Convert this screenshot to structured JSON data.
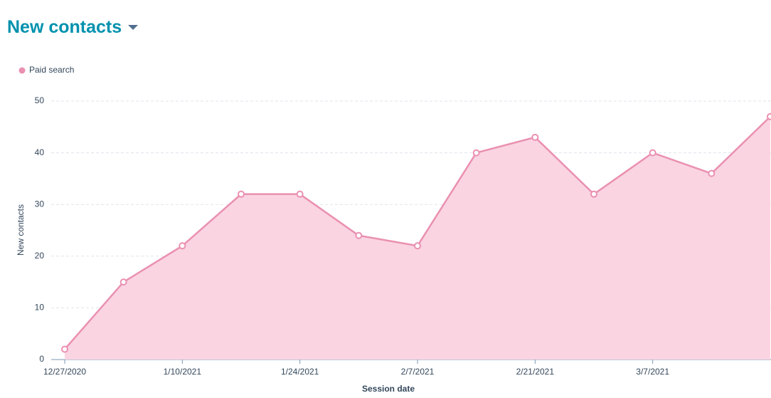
{
  "chart_data": {
    "type": "area",
    "title": "New contacts",
    "x_label": "Session date",
    "y_label": "New contacts",
    "categories": [
      "12/27/2020",
      null,
      "1/10/2021",
      null,
      "1/24/2021",
      null,
      "2/7/2021",
      null,
      "2/21/2021",
      null,
      "3/7/2021",
      null,
      null
    ],
    "series": [
      {
        "name": "Paid search",
        "color": "#ea90b1",
        "fill": "#fad4e1",
        "values": [
          2,
          15,
          22,
          32,
          32,
          24,
          22,
          40,
          43,
          32,
          40,
          36,
          47
        ]
      }
    ],
    "ylim": [
      0,
      50
    ],
    "yticks": [
      0,
      10,
      20,
      30,
      40,
      50
    ],
    "grid": true,
    "legend": "top-left"
  }
}
